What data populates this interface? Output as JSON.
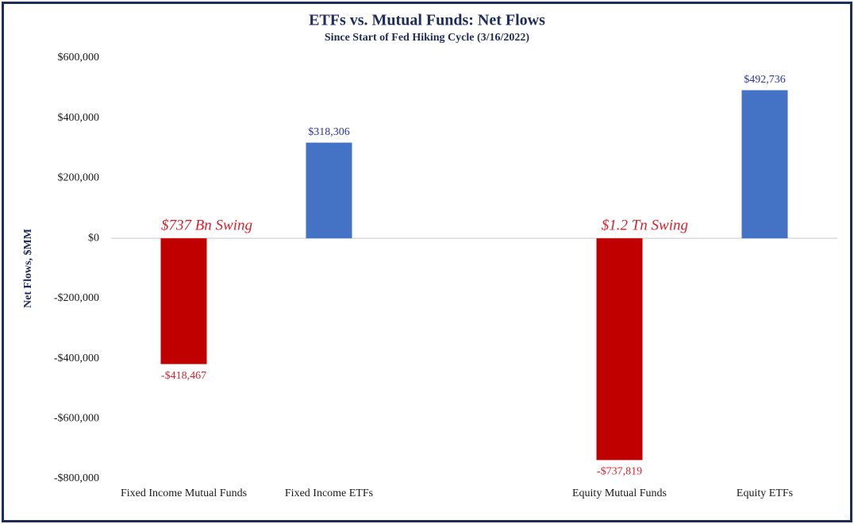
{
  "chart_data": {
    "type": "bar",
    "title": "ETFs vs. Mutual Funds: Net Flows",
    "subtitle": "Since Start of Fed Hiking Cycle (3/16/2022)",
    "y_label": "Net Flows, $MM",
    "categories": [
      "Fixed Income Mutual Funds",
      "Fixed Income ETFs",
      null,
      "Equity Mutual Funds",
      "Equity ETFs"
    ],
    "values": [
      -418467,
      318306,
      null,
      -737819,
      492736
    ],
    "value_labels": [
      "-$418,467",
      "$318,306",
      null,
      "-$737,819",
      "$492,736"
    ],
    "colors": [
      "#c00000",
      "#4472c4",
      null,
      "#c00000",
      "#4472c4"
    ],
    "ylim": [
      -800000,
      600000
    ],
    "yticks": [
      {
        "value": -800000,
        "label": "-$800,000"
      },
      {
        "value": -600000,
        "label": "-$600,000"
      },
      {
        "value": -400000,
        "label": "-$400,000"
      },
      {
        "value": -200000,
        "label": "-$200,000"
      },
      {
        "value": 0,
        "label": "$0"
      },
      {
        "value": 200000,
        "label": "$200,000"
      },
      {
        "value": 400000,
        "label": "$400,000"
      },
      {
        "value": 600000,
        "label": "$600,000"
      }
    ],
    "annotations": [
      "$737 Bn Swing",
      "$1.2 Tn Swing"
    ],
    "grid": false
  }
}
